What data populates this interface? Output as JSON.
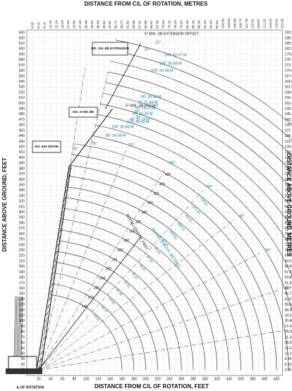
{
  "top_title": "DISTANCE FROM C/L OF ROTATION, METRES",
  "bottom_title": "DISTANCE FROM C/L OF ROTATION, FEET",
  "left_title": "DISTANCE ABOVE GROUND, FEET",
  "right_title": "DISTANCE ABOVE GROUND, METRES",
  "rotation_label": "℄ OF ROTATION",
  "feet_heights": [
    10,
    20,
    30,
    40,
    50,
    60,
    70,
    80,
    90,
    100,
    110,
    120,
    130,
    140,
    150,
    160,
    170,
    180,
    190,
    200,
    210,
    220,
    230,
    240,
    250,
    260,
    270,
    280,
    290,
    300,
    310,
    320,
    330,
    340,
    350,
    360,
    370,
    380,
    390,
    400,
    410,
    420,
    430,
    440,
    450,
    460,
    470,
    480,
    490,
    500,
    510,
    520,
    530,
    540,
    550,
    560,
    570,
    580,
    590,
    600,
    610,
    620,
    630
  ],
  "feet_distances": [
    20,
    40,
    60,
    80,
    100,
    120,
    140,
    160,
    180,
    200,
    220,
    240,
    260,
    280,
    300,
    320,
    340,
    360,
    380,
    400,
    420
  ],
  "metric_labels": [
    "3.05",
    "6.10",
    "9.14",
    "12.19",
    "15.24",
    "18.29",
    "21.34",
    "24.38",
    "27.43",
    "30.48",
    "33.53",
    "36.58",
    "39.62",
    "42.67",
    "45.72",
    "48.77",
    "51.82",
    "54.86",
    "57.91",
    "60.96",
    "64.01",
    "67.06",
    "70.10",
    "73.15",
    "76.20",
    "79.25",
    "82.30",
    "85.34",
    "88.39",
    "91.44",
    "94.49",
    "97.54",
    "100.58",
    "103.63",
    "106.68",
    "109.73",
    "112.78",
    "115.82",
    "118.87",
    "121.92",
    "124.97",
    "128.02",
    "131.06",
    "134.11",
    "137.16",
    "140.21",
    "143.26",
    "146.30",
    "149.35",
    "152.40",
    "155.45",
    "158.50",
    "161.54",
    "164.59",
    "167.64",
    "170.69",
    "173.74",
    "176.78",
    "179.83",
    "182.88",
    "185.93",
    "188.98",
    "192.02"
  ],
  "boxes": [
    "NO. 125 JIB EXTENSION",
    "NO. 27AB JIB",
    "NO. 63A BOOM"
  ],
  "boom_angles": [
    "82°",
    "78°",
    "70°",
    "60°",
    "50°",
    "40°",
    "30°",
    "20°",
    "10°"
  ],
  "boom_length_feet_title": "BOOM LENGTH, FEET",
  "boom_length_metres_title": "BOOM LENGTH, METRES",
  "boom_lengths_feet": [
    140,
    160,
    180,
    200,
    220,
    240,
    260,
    280,
    300,
    320,
    340,
    360,
    380,
    400,
    420
  ],
  "boom_lengths_metres": [
    "42.67",
    "48.77",
    "54.86",
    "60.96",
    "67.06",
    "73.15",
    "79.25",
    "85.34",
    "91.44",
    "97.54",
    "103.63",
    "109.73",
    "115.82",
    "121.92",
    "128.02"
  ],
  "jib_extension_notes": [
    "5° MIN. JIB EXTENSION OFFSET",
    "10°",
    "20°",
    "140' 42.67 M",
    "120' 36.58 M",
    "100' 30.48 M",
    "80' 24.38 M",
    "70' 21.34 M",
    "60' 18.29 M",
    "50' 15.24 M",
    "40' 12.19 M"
  ],
  "jib_notes": [
    "5° MIN. JIB OFFSET",
    "10°",
    "20°",
    "120' 36.58 M",
    "100' 30.48 M",
    "80' 24.38 M"
  ]
}
